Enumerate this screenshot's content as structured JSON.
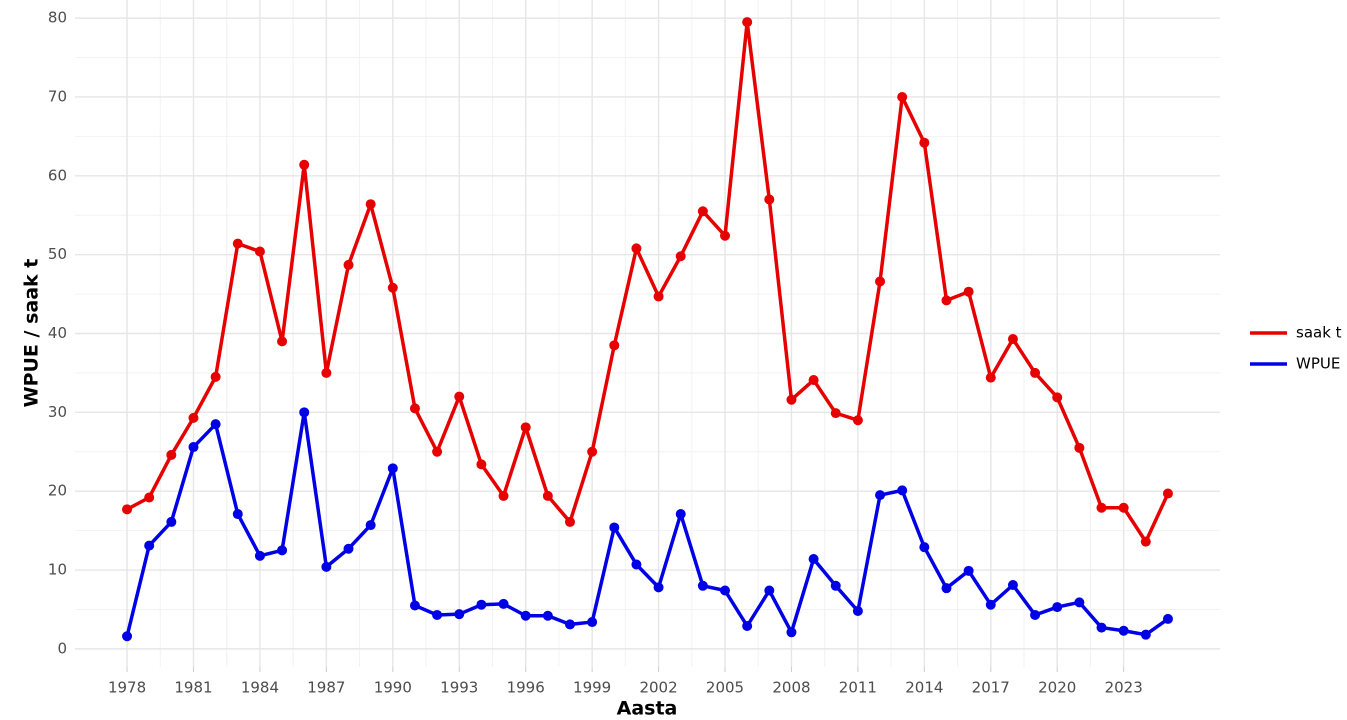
{
  "chart_data": {
    "type": "line",
    "xlabel": "Aasta",
    "ylabel": "WPUE / saak t",
    "x": [
      1978,
      1979,
      1980,
      1981,
      1982,
      1983,
      1984,
      1985,
      1986,
      1987,
      1988,
      1989,
      1990,
      1991,
      1992,
      1993,
      1994,
      1995,
      1996,
      1997,
      1998,
      1999,
      2000,
      2001,
      2002,
      2003,
      2004,
      2005,
      2006,
      2007,
      2008,
      2009,
      2010,
      2011,
      2012,
      2013,
      2014,
      2015,
      2016,
      2017,
      2018,
      2019,
      2020,
      2021,
      2022,
      2023,
      2024,
      2025
    ],
    "series": [
      {
        "name": "saak t",
        "color": "#e60000",
        "values": [
          17.7,
          19.2,
          24.6,
          29.3,
          34.5,
          51.4,
          50.4,
          39.0,
          61.4,
          35.0,
          48.7,
          56.4,
          45.8,
          30.5,
          25.0,
          32.0,
          23.4,
          19.4,
          28.1,
          19.4,
          16.1,
          25.0,
          38.5,
          50.8,
          44.7,
          49.8,
          55.5,
          52.4,
          79.5,
          57.0,
          31.6,
          34.1,
          29.9,
          29.0,
          46.6,
          70.0,
          64.2,
          44.2,
          45.3,
          34.4,
          39.3,
          35.0,
          31.9,
          25.5,
          17.9,
          17.9,
          13.6,
          19.7
        ]
      },
      {
        "name": "WPUE",
        "color": "#0000e6",
        "values": [
          1.6,
          13.1,
          16.1,
          25.6,
          28.5,
          17.1,
          11.8,
          12.5,
          30.0,
          10.4,
          12.7,
          15.7,
          22.9,
          5.5,
          4.3,
          4.4,
          5.6,
          5.7,
          4.2,
          4.2,
          3.1,
          3.4,
          15.4,
          10.7,
          7.8,
          17.1,
          8.0,
          7.4,
          2.9,
          7.4,
          2.1,
          11.4,
          8.0,
          4.8,
          19.5,
          20.1,
          12.9,
          7.7,
          9.9,
          5.6,
          8.1,
          4.3,
          5.3,
          5.9,
          2.7,
          2.3,
          1.8,
          3.8
        ]
      }
    ],
    "xlim": [
      1975.65,
      2027.35
    ],
    "xticks": [
      1978,
      1981,
      1984,
      1987,
      1990,
      1993,
      1996,
      1999,
      2002,
      2005,
      2008,
      2011,
      2014,
      2017,
      2020,
      2023
    ],
    "ylim": [
      -2.3,
      82.3
    ],
    "yticks": [
      0,
      10,
      20,
      30,
      40,
      50,
      60,
      70,
      80
    ],
    "grid": true,
    "legend": "right"
  }
}
